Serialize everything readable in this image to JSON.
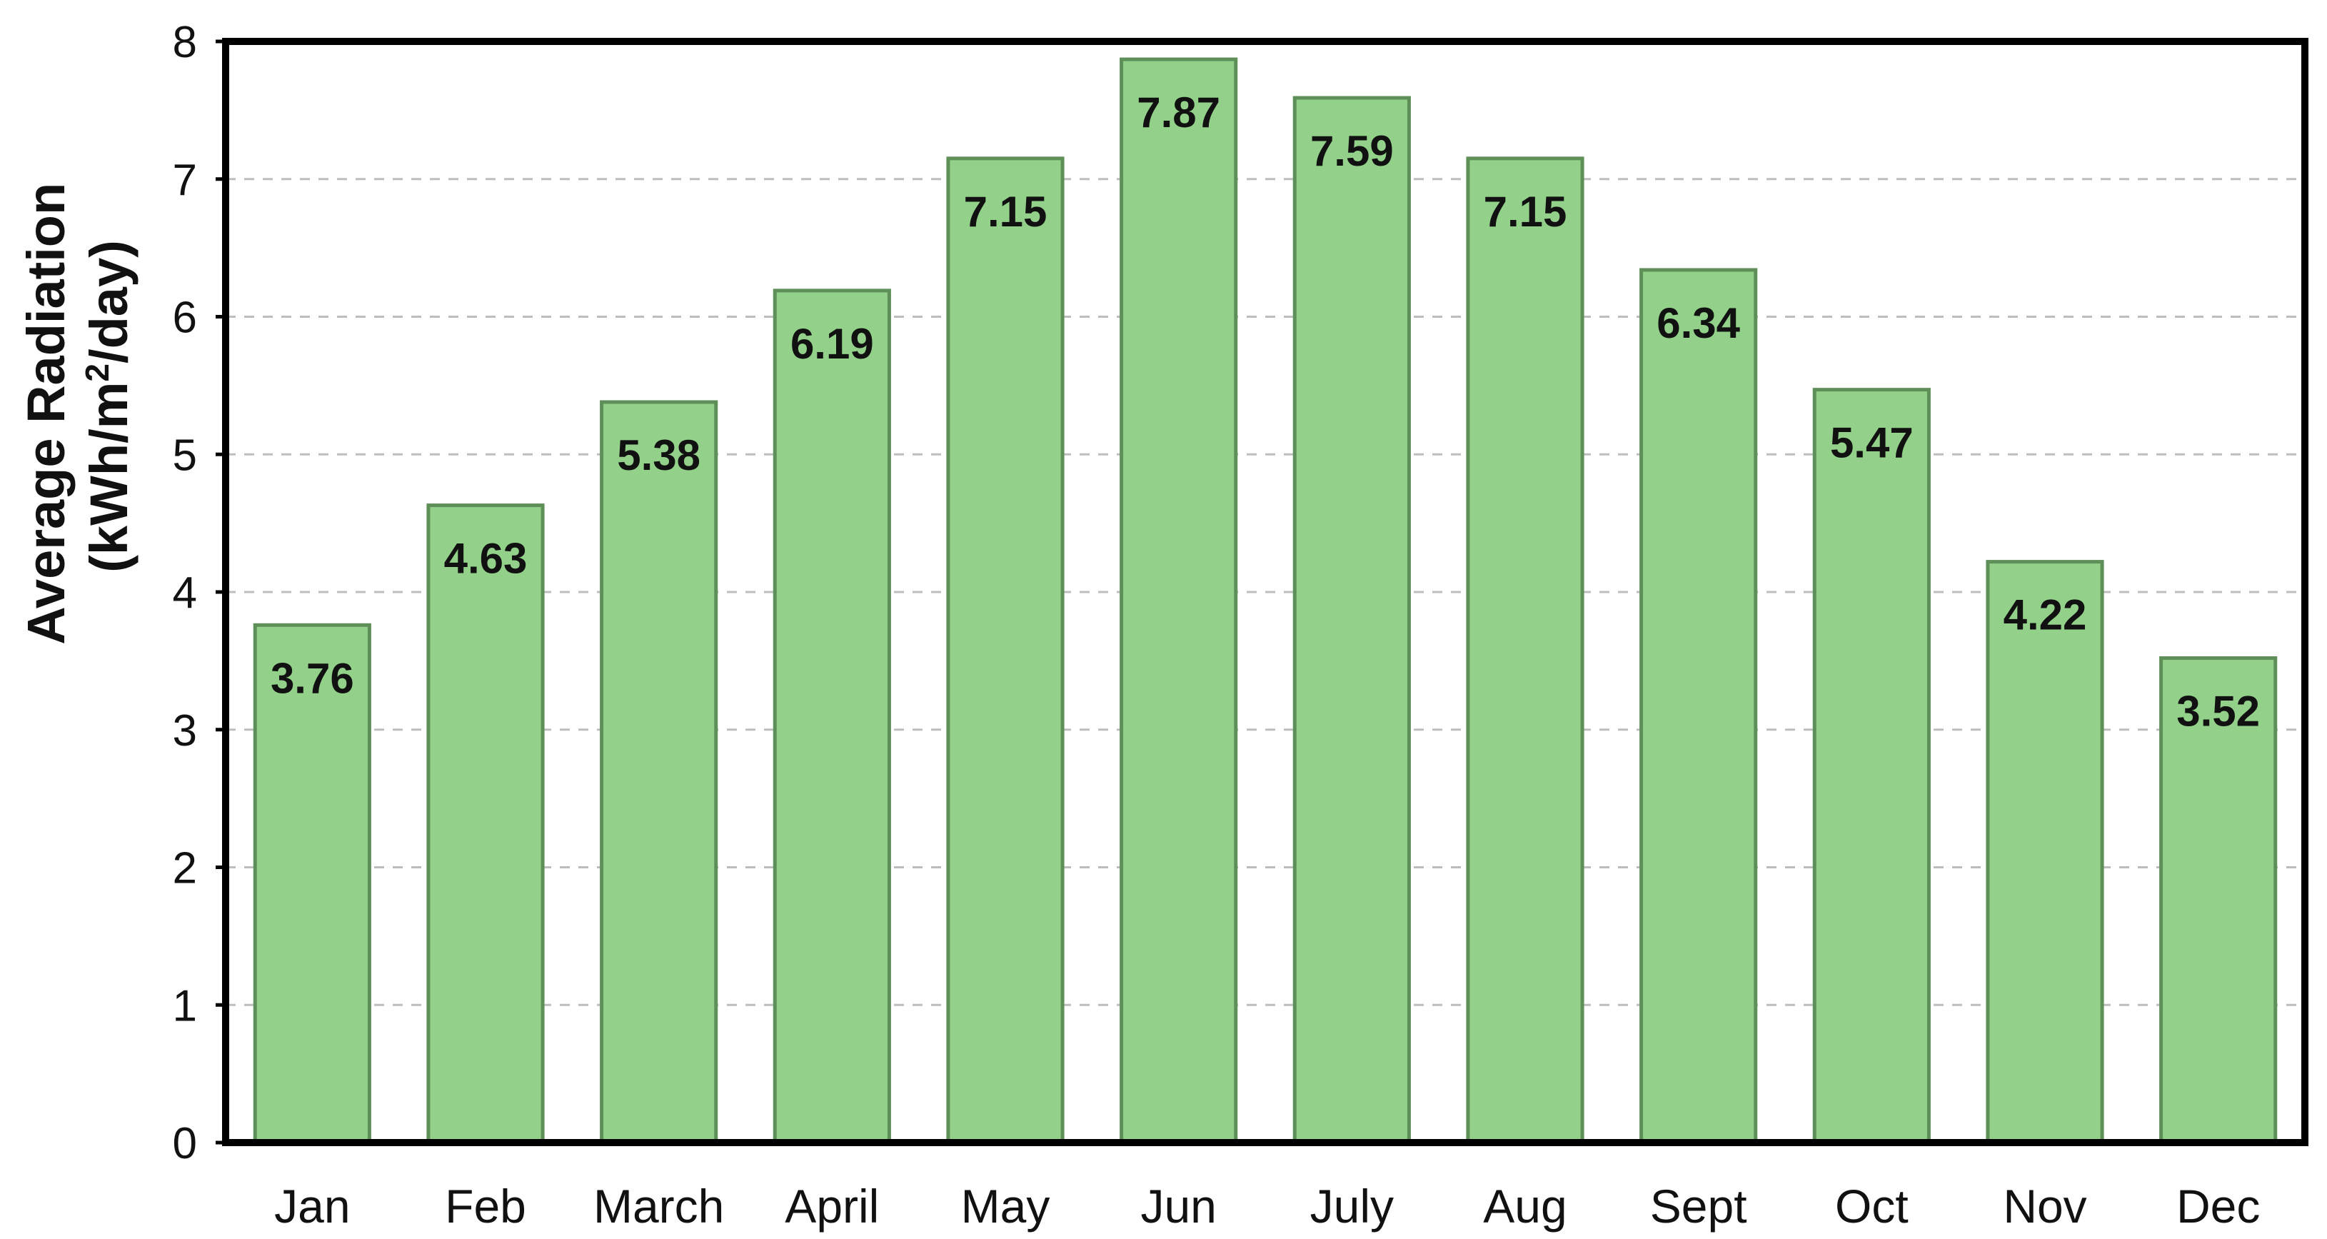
{
  "chart_data": {
    "type": "bar",
    "title": "",
    "xlabel": "",
    "ylabel": "Average Radiation",
    "ylabel_unit_pre": "(kWh/m",
    "ylabel_unit_sup": "2",
    "ylabel_unit_post": "/day)",
    "ylim": [
      0,
      8
    ],
    "yticks": [
      "0",
      "1",
      "2",
      "3",
      "4",
      "5",
      "6",
      "7",
      "8"
    ],
    "grid": "horizontal dashed",
    "legend": "none",
    "categories": [
      "Jan",
      "Feb",
      "March",
      "April",
      "May",
      "Jun",
      "July",
      "Aug",
      "Sept",
      "Oct",
      "Nov",
      "Dec"
    ],
    "values": [
      3.76,
      4.63,
      5.38,
      6.19,
      7.15,
      7.87,
      7.59,
      7.15,
      6.34,
      5.47,
      4.22,
      3.52
    ],
    "data_labels": [
      "3.76",
      "4.63",
      "5.38",
      "6.19",
      "7.15",
      "7.87",
      "7.59",
      "7.15",
      "6.34",
      "5.47",
      "4.22",
      "3.52"
    ],
    "colors": {
      "bar_fill": "#93d18a",
      "bar_stroke": "#5f8f58",
      "frame": "#000000",
      "grid": "#bdbdbd"
    }
  }
}
